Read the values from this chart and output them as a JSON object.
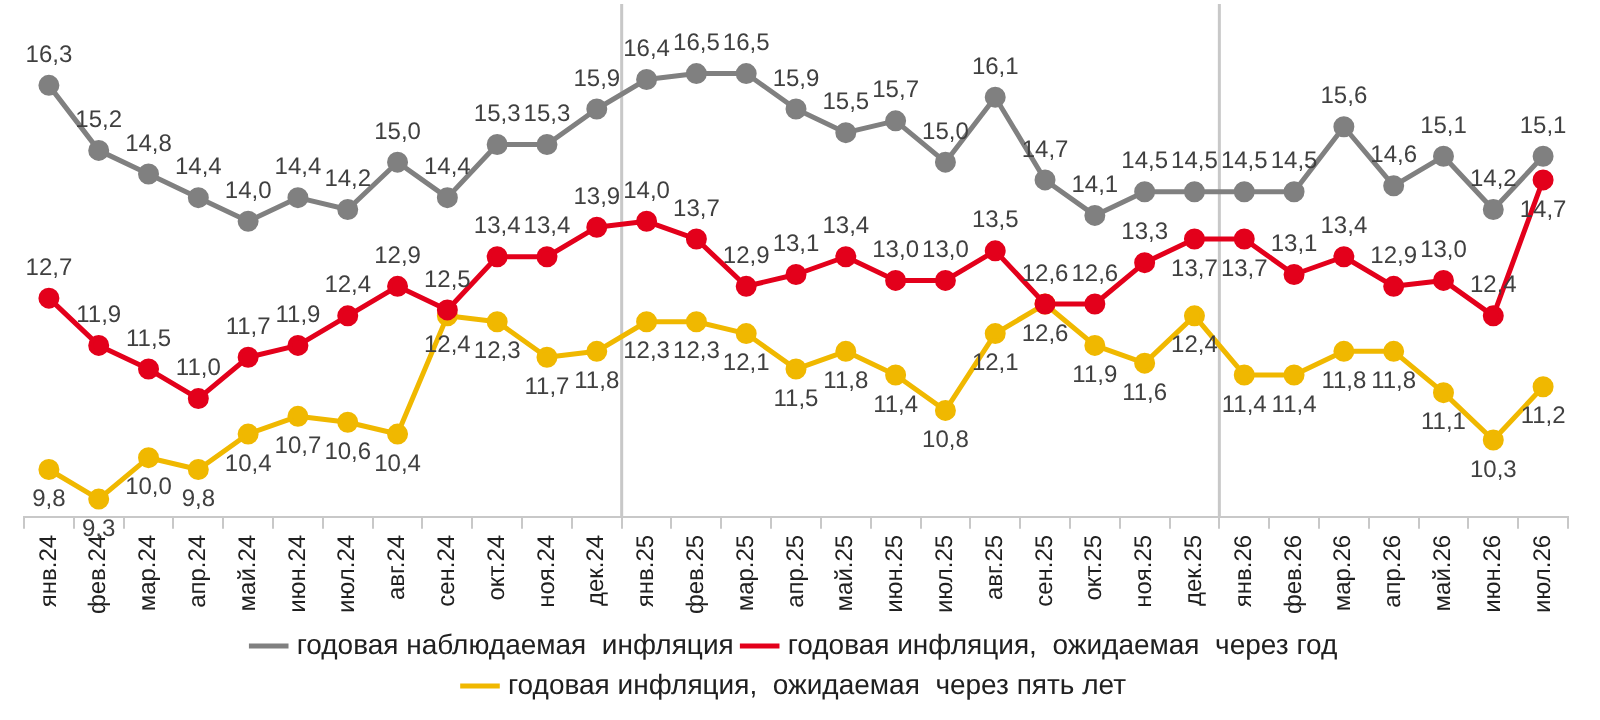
{
  "chart_data": {
    "type": "line",
    "categories": [
      "янв.24",
      "фев.24",
      "мар.24",
      "апр.24",
      "май.24",
      "июн.24",
      "июл.24",
      "авг.24",
      "сен.24",
      "окт.24",
      "ноя.24",
      "дек.24",
      "янв.25",
      "фев.25",
      "мар.25",
      "апр.25",
      "май.25",
      "июн.25",
      "июл.25",
      "авг.25",
      "сен.25",
      "окт.25",
      "ноя.25",
      "дек.25",
      "янв.26",
      "фев.26",
      "мар.26",
      "апр.26",
      "май.26",
      "июн.26",
      "июл.26"
    ],
    "series": [
      {
        "name": "годовая наблюдаемая  инфляция",
        "color": "#808080",
        "values": [
          16.3,
          15.2,
          14.8,
          14.4,
          14.0,
          14.4,
          14.2,
          15.0,
          14.4,
          15.3,
          15.3,
          15.9,
          16.4,
          16.5,
          16.5,
          15.9,
          15.5,
          15.7,
          15.0,
          16.1,
          14.7,
          14.1,
          14.5,
          14.5,
          14.5,
          14.5,
          15.6,
          14.6,
          15.1,
          14.2,
          15.1
        ],
        "value_labels": [
          "16,3",
          "15,2",
          "14,8",
          "14,4",
          "14,0",
          "14,4",
          "14,2",
          "15,0",
          "14,4",
          "15,3",
          "15,3",
          "15,9",
          "16,4",
          "16,5",
          "16,5",
          "15,9",
          "15,5",
          "15,7",
          "15,0",
          "16,1",
          "14,7",
          "14,1",
          "14,5",
          "14,5",
          "14,5",
          "14,5",
          "15,6",
          "14,6",
          "15,1",
          "14,2",
          "15,1"
        ]
      },
      {
        "name": "годовая инфляция,  ожидаемая  через год",
        "color": "#e3001b",
        "values": [
          12.7,
          11.9,
          11.5,
          11.0,
          11.7,
          11.9,
          12.4,
          12.9,
          12.5,
          13.4,
          13.4,
          13.9,
          14.0,
          13.7,
          12.9,
          13.1,
          13.4,
          13.0,
          13.0,
          13.5,
          12.6,
          12.6,
          13.3,
          13.7,
          13.7,
          13.1,
          13.4,
          12.9,
          13.0,
          12.4,
          14.7
        ],
        "value_labels": [
          "12,7",
          "11,9",
          "11,5",
          "11,0",
          "11,7",
          "11,9",
          "12,4",
          "12,9",
          "12,5",
          "13,4",
          "13,4",
          "13,9",
          "14,0",
          "13,7",
          "12,9",
          "13,1",
          "13,4",
          "13,0",
          "13,0",
          "13,5",
          "12,6",
          "12,6",
          "13,3",
          "13,7",
          "13,7",
          "13,1",
          "13,4",
          "12,9",
          "13,0",
          "12,4",
          "14,7"
        ]
      },
      {
        "name": "годовая инфляция,  ожидаемая  через пять лет",
        "color": "#f0b800",
        "values": [
          9.8,
          9.3,
          10.0,
          9.8,
          10.4,
          10.7,
          10.6,
          10.4,
          12.4,
          12.3,
          11.7,
          11.8,
          12.3,
          12.3,
          12.1,
          11.5,
          11.8,
          11.4,
          10.8,
          12.1,
          12.6,
          11.9,
          11.6,
          12.4,
          11.4,
          11.4,
          11.8,
          11.8,
          11.1,
          10.3,
          11.2
        ],
        "value_labels": [
          "9,8",
          "9,3",
          "10,0",
          "9,8",
          "10,4",
          "10,7",
          "10,6",
          "10,4",
          "12,4",
          "12,3",
          "11,7",
          "11,8",
          "12,3",
          "12,3",
          "12,1",
          "11,5",
          "11,8",
          "11,4",
          "10,8",
          "12,1",
          "12,6",
          "11,9",
          "11,6",
          "12,4",
          "11,4",
          "11,4",
          "11,8",
          "11,8",
          "11,1",
          "10,3",
          "11,2"
        ]
      }
    ],
    "marker": "circle",
    "line_style": "solid",
    "grid": false,
    "legend": "bottom",
    "tick_labels": "x"
  }
}
